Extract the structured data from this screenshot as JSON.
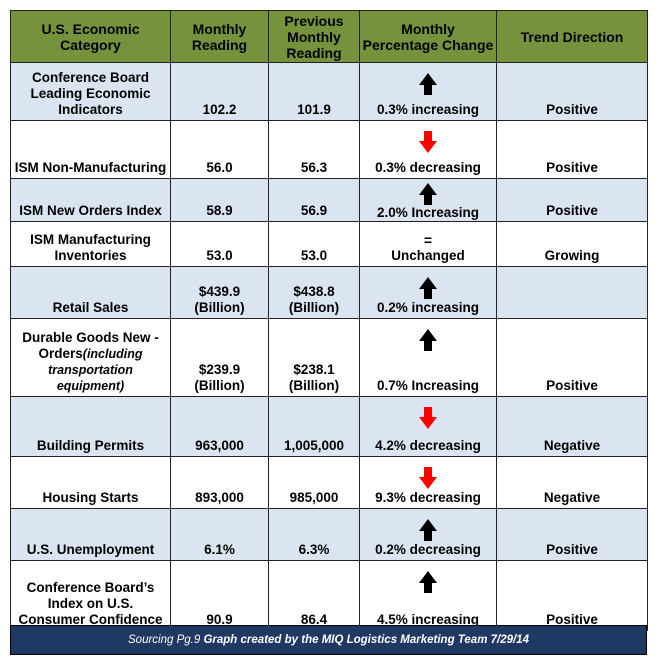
{
  "headers": {
    "category": "U.S. Economic Category",
    "monthly": "Monthly Reading",
    "previous": "Previous Monthly Reading",
    "change": "Monthly Percentage Change",
    "trend": "Trend Direction"
  },
  "rows": [
    {
      "category": "Conference Board Leading Economic Indicators",
      "category_note": "",
      "monthly": "102.2",
      "previous": "101.9",
      "arrow": "up",
      "change": "0.3% increasing",
      "trend": "Positive"
    },
    {
      "category": "ISM Non-Manufacturing",
      "category_note": "",
      "monthly": "56.0",
      "previous": "56.3",
      "arrow": "down",
      "change": "0.3% decreasing",
      "trend": "Positive"
    },
    {
      "category": "ISM New Orders Index",
      "category_note": "",
      "monthly": "58.9",
      "previous": "56.9",
      "arrow": "up",
      "change": "2.0% Increasing",
      "trend": "Positive"
    },
    {
      "category": "ISM Manufacturing Inventories",
      "category_note": "",
      "monthly": "53.0",
      "previous": "53.0",
      "arrow": "equal",
      "change": "Unchanged",
      "trend": "Growing"
    },
    {
      "category": "Retail Sales",
      "category_note": "",
      "monthly": "$439.9 (Billion)",
      "previous": "$438.8 (Billion)",
      "arrow": "up",
      "change": "0.2% increasing",
      "trend": ""
    },
    {
      "category": "Durable Goods New -Orders",
      "category_note": "(including transportation equipment)",
      "monthly": "$239.9 (Billion)",
      "previous": "$238.1 (Billion)",
      "arrow": "up",
      "change": "0.7% Increasing",
      "trend": "Positive"
    },
    {
      "category": "Building Permits",
      "category_note": "",
      "monthly": "963,000",
      "previous": "1,005,000",
      "arrow": "down",
      "change": "4.2% decreasing",
      "trend": "Negative"
    },
    {
      "category": "Housing Starts",
      "category_note": "",
      "monthly": "893,000",
      "previous": "985,000",
      "arrow": "down",
      "change": "9.3% decreasing",
      "trend": "Negative"
    },
    {
      "category": "U.S. Unemployment",
      "category_note": "",
      "monthly": "6.1%",
      "previous": "6.3%",
      "arrow": "up",
      "change": "0.2% decreasing",
      "trend": "Positive"
    },
    {
      "category": "Conference Board’s Index on U.S. Consumer Confidence",
      "category_note": "",
      "monthly": "90.9",
      "previous": "86.4",
      "arrow": "up",
      "change": "4.5% increasing",
      "trend": "Positive"
    }
  ],
  "equal_symbol": "=",
  "footer": {
    "source": "Sourcing Pg.9",
    "credit": "Graph created by the MIQ Logistics Marketing Team 7/29/14"
  },
  "colors": {
    "header_bg": "#76923c",
    "shaded_row": "#dbe5f1",
    "white_row": "#ffffff",
    "arrow_up": "#000000",
    "arrow_down": "#ff0000",
    "footer_bg": "#1f3864"
  }
}
